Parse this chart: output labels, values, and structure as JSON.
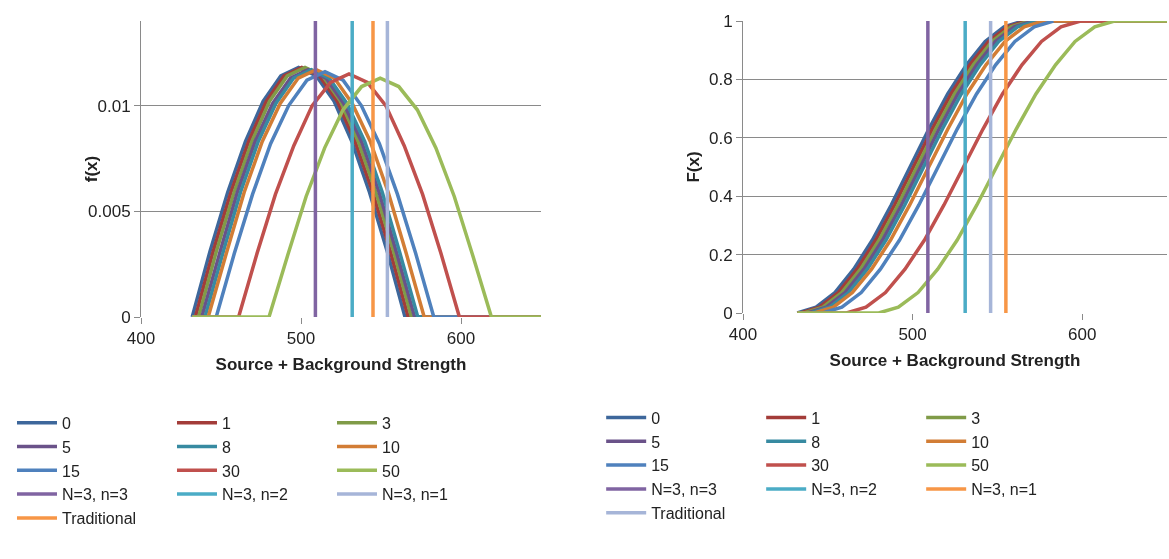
{
  "chart_data": [
    {
      "type": "line",
      "xlabel": "Source + Background Strength",
      "ylabel": "f(x)",
      "xlim": [
        400,
        650
      ],
      "xticks": [
        400,
        500,
        600
      ],
      "ylim": [
        0,
        0.014
      ],
      "yticks": [
        0,
        0.005,
        0.01
      ],
      "grid": "y",
      "legend": "bottom",
      "series": [
        {
          "name": "0",
          "color": "#3d679b",
          "x": [
            432,
            443.1,
            454.2,
            465.3,
            476.3,
            487.4,
            498.5,
            509.6,
            520.7,
            531.8,
            542.8,
            553.9,
            565,
            650
          ],
          "values": [
            0,
            0.0031,
            0.0059,
            0.0083,
            0.0102,
            0.0114,
            0.0118,
            0.0114,
            0.0102,
            0.0083,
            0.0059,
            0.0031,
            0,
            0
          ]
        },
        {
          "name": "1",
          "color": "#a33c39",
          "x": [
            432,
            434,
            445.1,
            456.2,
            467.3,
            478.3,
            489.4,
            500.5,
            511.6,
            522.7,
            533.8,
            544.8,
            555.9,
            567,
            650
          ],
          "values": [
            0,
            0,
            0.0031,
            0.0059,
            0.0083,
            0.0102,
            0.0114,
            0.0118,
            0.0114,
            0.0102,
            0.0083,
            0.0059,
            0.0031,
            0,
            0
          ]
        },
        {
          "name": "3",
          "color": "#809b48",
          "x": [
            432,
            436,
            447.1,
            458.2,
            469.3,
            480.3,
            491.4,
            502.5,
            513.6,
            524.7,
            535.8,
            546.8,
            557.9,
            569,
            650
          ],
          "values": [
            0,
            0,
            0.0031,
            0.0059,
            0.0083,
            0.0102,
            0.0114,
            0.0118,
            0.0114,
            0.0102,
            0.0083,
            0.0059,
            0.0031,
            0,
            0
          ]
        },
        {
          "name": "5",
          "color": "#6a5289",
          "x": [
            432,
            438,
            449.1,
            460.2,
            471.3,
            482.3,
            493.4,
            504.5,
            515.6,
            526.7,
            537.8,
            548.8,
            559.9,
            571,
            650
          ],
          "values": [
            0,
            0,
            0.003,
            0.0059,
            0.0083,
            0.0101,
            0.0113,
            0.0117,
            0.0113,
            0.0101,
            0.0083,
            0.0059,
            0.003,
            0,
            0
          ]
        },
        {
          "name": "8",
          "color": "#378aa1",
          "x": [
            432,
            440,
            451.1,
            462.2,
            473.3,
            484.3,
            495.4,
            506.5,
            517.6,
            528.7,
            539.8,
            550.8,
            561.9,
            573,
            650
          ],
          "values": [
            0,
            0,
            0.003,
            0.0059,
            0.0083,
            0.0101,
            0.0113,
            0.0117,
            0.0113,
            0.0101,
            0.0083,
            0.0059,
            0.003,
            0,
            0
          ]
        },
        {
          "name": "10",
          "color": "#d27d35",
          "x": [
            432,
            442,
            453.3,
            464.5,
            475.8,
            487,
            498.3,
            509.5,
            520.8,
            532,
            543.3,
            554.5,
            565.8,
            577,
            650
          ],
          "values": [
            0,
            0,
            0.003,
            0.0059,
            0.0083,
            0.0101,
            0.0113,
            0.0117,
            0.0113,
            0.0101,
            0.0083,
            0.0059,
            0.003,
            0,
            0
          ]
        },
        {
          "name": "15",
          "color": "#4f81bd",
          "x": [
            432,
            447,
            458.3,
            469.7,
            481,
            492.3,
            503.7,
            515,
            526.3,
            537.7,
            549,
            560.3,
            571.7,
            583,
            650
          ],
          "values": [
            0,
            0,
            0.003,
            0.0058,
            0.0082,
            0.01,
            0.0112,
            0.0116,
            0.0112,
            0.01,
            0.0082,
            0.0058,
            0.003,
            0,
            0
          ]
        },
        {
          "name": "30",
          "color": "#c0504d",
          "x": [
            432,
            461,
            472.5,
            484,
            495.5,
            507,
            518.5,
            530,
            541.5,
            553,
            564.5,
            576,
            587.5,
            599,
            650
          ],
          "values": [
            0,
            0,
            0.003,
            0.0058,
            0.0081,
            0.01,
            0.0111,
            0.0115,
            0.0111,
            0.01,
            0.0081,
            0.0058,
            0.003,
            0,
            0
          ]
        },
        {
          "name": "50",
          "color": "#9bbb59",
          "x": [
            432,
            480,
            491.6,
            503.2,
            514.8,
            526.3,
            537.9,
            549.5,
            561.1,
            572.7,
            584.3,
            595.8,
            607.4,
            619,
            650
          ],
          "values": [
            0,
            0,
            0.0029,
            0.0057,
            0.008,
            0.0098,
            0.0109,
            0.0113,
            0.0109,
            0.0098,
            0.008,
            0.0057,
            0.0029,
            0,
            0
          ]
        },
        {
          "name": "N=3, n=3",
          "color": "#8064a2",
          "x": [
            509,
            509
          ],
          "values": [
            0,
            0.014
          ]
        },
        {
          "name": "N=3, n=2",
          "color": "#4bacc6",
          "x": [
            532,
            532
          ],
          "values": [
            0,
            0.014
          ]
        },
        {
          "name": "N=3, n=1",
          "color": "#a6b5d8",
          "x": [
            554,
            554
          ],
          "values": [
            0,
            0.014
          ]
        },
        {
          "name": "Traditional",
          "color": "#f79646",
          "x": [
            545,
            545
          ],
          "values": [
            0,
            0.014
          ]
        }
      ]
    },
    {
      "type": "line",
      "xlabel": "Source + Background Strength",
      "ylabel": "F(x)",
      "xlim": [
        400,
        650
      ],
      "xticks": [
        400,
        500,
        600
      ],
      "ylim": [
        0,
        1
      ],
      "yticks": [
        0,
        0.2,
        0.4,
        0.6,
        0.8,
        1
      ],
      "grid": "y",
      "legend": "bottom",
      "series": [
        {
          "name": "0",
          "color": "#3d679b",
          "x": [
            432,
            443.1,
            454.2,
            465.3,
            476.3,
            487.4,
            498.5,
            509.6,
            520.7,
            531.8,
            542.8,
            553.9,
            565,
            650
          ],
          "values": [
            0,
            0.02,
            0.07,
            0.15,
            0.25,
            0.37,
            0.5,
            0.63,
            0.75,
            0.85,
            0.93,
            0.98,
            1,
            1
          ]
        },
        {
          "name": "1",
          "color": "#a33c39",
          "x": [
            432,
            434,
            445.1,
            456.2,
            467.3,
            478.3,
            489.4,
            500.5,
            511.6,
            522.7,
            533.8,
            544.8,
            555.9,
            567
          ],
          "values": [
            0,
            0,
            0.02,
            0.07,
            0.15,
            0.25,
            0.37,
            0.5,
            0.63,
            0.75,
            0.85,
            0.93,
            0.98,
            1
          ]
        },
        {
          "name": "3",
          "color": "#809b48",
          "x": [
            432,
            436,
            447.1,
            458.2,
            469.3,
            480.3,
            491.4,
            502.5,
            513.6,
            524.7,
            535.8,
            546.8,
            557.9,
            569,
            650
          ],
          "values": [
            0,
            0,
            0.02,
            0.07,
            0.15,
            0.25,
            0.37,
            0.5,
            0.63,
            0.75,
            0.85,
            0.93,
            0.98,
            1,
            1
          ]
        },
        {
          "name": "5",
          "color": "#6a5289",
          "x": [
            432,
            438,
            449.1,
            460.2,
            471.3,
            482.3,
            493.4,
            504.5,
            515.6,
            526.7,
            537.8,
            548.8,
            559.9,
            571,
            650
          ],
          "values": [
            0,
            0,
            0.02,
            0.07,
            0.15,
            0.25,
            0.37,
            0.5,
            0.63,
            0.75,
            0.85,
            0.93,
            0.98,
            1,
            1
          ]
        },
        {
          "name": "8",
          "color": "#378aa1",
          "x": [
            432,
            440,
            451.1,
            462.2,
            473.3,
            484.3,
            495.4,
            506.5,
            517.6,
            528.7,
            539.8,
            550.8,
            561.9,
            573
          ],
          "values": [
            0,
            0,
            0.02,
            0.07,
            0.15,
            0.25,
            0.37,
            0.5,
            0.63,
            0.75,
            0.85,
            0.93,
            0.98,
            1
          ]
        },
        {
          "name": "10",
          "color": "#d27d35",
          "x": [
            432,
            442,
            453.3,
            464.5,
            475.8,
            487,
            498.3,
            509.5,
            520.8,
            532,
            543.3,
            554.5,
            565.8,
            577,
            650
          ],
          "values": [
            0,
            0,
            0.02,
            0.07,
            0.15,
            0.25,
            0.37,
            0.5,
            0.63,
            0.75,
            0.85,
            0.93,
            0.98,
            1,
            1
          ]
        },
        {
          "name": "15",
          "color": "#4f81bd",
          "x": [
            432,
            447,
            458.3,
            469.7,
            481,
            492.3,
            503.7,
            515,
            526.3,
            537.7,
            549,
            560.3,
            571.7,
            583
          ],
          "values": [
            0,
            0,
            0.02,
            0.07,
            0.15,
            0.25,
            0.37,
            0.5,
            0.63,
            0.75,
            0.85,
            0.93,
            0.98,
            1
          ]
        },
        {
          "name": "30",
          "color": "#c0504d",
          "x": [
            432,
            461,
            472.5,
            484,
            495.5,
            507,
            518.5,
            530,
            541.5,
            553,
            564.5,
            576,
            587.5,
            599,
            650
          ],
          "values": [
            0,
            0,
            0.02,
            0.07,
            0.15,
            0.25,
            0.37,
            0.5,
            0.63,
            0.75,
            0.85,
            0.93,
            0.98,
            1,
            1
          ]
        },
        {
          "name": "50",
          "color": "#9bbb59",
          "x": [
            432,
            480,
            491.6,
            503.2,
            514.8,
            526.3,
            537.9,
            549.5,
            561.1,
            572.7,
            584.3,
            595.8,
            607.4,
            619,
            650
          ],
          "values": [
            0,
            0,
            0.02,
            0.07,
            0.15,
            0.25,
            0.37,
            0.5,
            0.63,
            0.75,
            0.85,
            0.93,
            0.98,
            1,
            1
          ]
        },
        {
          "name": "N=3, n=3",
          "color": "#8064a2",
          "x": [
            509,
            509
          ],
          "values": [
            0,
            1
          ]
        },
        {
          "name": "N=3, n=2",
          "color": "#4bacc6",
          "x": [
            531,
            531
          ],
          "values": [
            0,
            1
          ]
        },
        {
          "name": "N=3, n=1",
          "color": "#f79646",
          "x": [
            555,
            555
          ],
          "values": [
            0,
            1
          ]
        },
        {
          "name": "Traditional",
          "color": "#a6b5d8",
          "x": [
            546,
            546
          ],
          "values": [
            0,
            1
          ]
        }
      ]
    }
  ]
}
